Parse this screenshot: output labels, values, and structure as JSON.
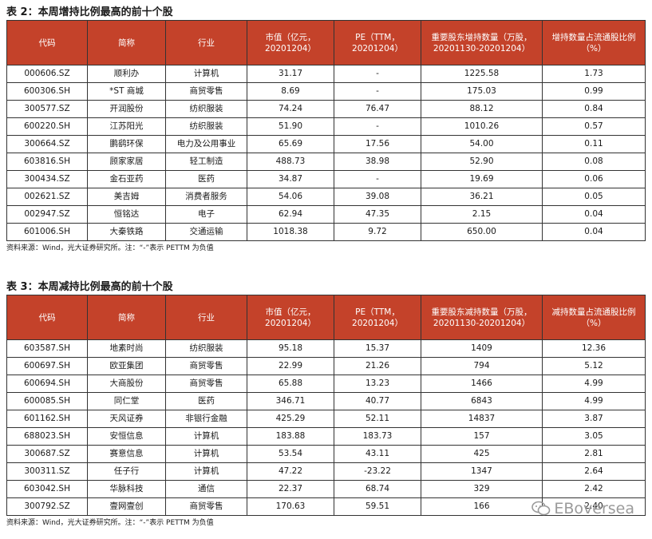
{
  "table2": {
    "title": "表 2：本周增持比例最高的前十个股",
    "headers": [
      "代码",
      "简称",
      "行业",
      "市值（亿元，20201204）",
      "PE（TTM，20201204）",
      "重要股东增持数量（万股，20201130-20201204）",
      "增持数量占流通股比例（%）"
    ],
    "rows": [
      [
        "000606.SZ",
        "顺利办",
        "计算机",
        "31.17",
        "-",
        "1225.58",
        "1.73"
      ],
      [
        "600306.SH",
        "*ST 商城",
        "商贸零售",
        "8.69",
        "-",
        "175.03",
        "0.99"
      ],
      [
        "300577.SZ",
        "开润股份",
        "纺织服装",
        "74.24",
        "76.47",
        "88.12",
        "0.84"
      ],
      [
        "600220.SH",
        "江苏阳光",
        "纺织服装",
        "51.90",
        "-",
        "1010.26",
        "0.57"
      ],
      [
        "300664.SZ",
        "鹏鹞环保",
        "电力及公用事业",
        "65.69",
        "17.56",
        "54.00",
        "0.11"
      ],
      [
        "603816.SH",
        "顾家家居",
        "轻工制造",
        "488.73",
        "38.98",
        "52.90",
        "0.08"
      ],
      [
        "300434.SZ",
        "金石亚药",
        "医药",
        "34.87",
        "-",
        "19.69",
        "0.06"
      ],
      [
        "002621.SZ",
        "美吉姆",
        "消费者服务",
        "54.06",
        "39.08",
        "36.21",
        "0.05"
      ],
      [
        "002947.SZ",
        "恒铭达",
        "电子",
        "62.94",
        "47.35",
        "2.15",
        "0.04"
      ],
      [
        "601006.SH",
        "大秦铁路",
        "交通运输",
        "1018.38",
        "9.72",
        "650.00",
        "0.04"
      ]
    ],
    "note": "资料来源：Wind，光大证券研究所。注：“-”表示 PETTM 为负值"
  },
  "table3": {
    "title": "表 3：本周减持比例最高的前十个股",
    "headers": [
      "代码",
      "简称",
      "行业",
      "市值（亿元，20201204）",
      "PE（TTM，20201204）",
      "重要股东减持数量（万股，20201130-20201204）",
      "减持数量占流通股比例（%）"
    ],
    "rows": [
      [
        "603587.SH",
        "地素时尚",
        "纺织服装",
        "95.18",
        "15.37",
        "1409",
        "12.36"
      ],
      [
        "600697.SH",
        "欧亚集团",
        "商贸零售",
        "22.99",
        "21.26",
        "794",
        "5.12"
      ],
      [
        "600694.SH",
        "大商股份",
        "商贸零售",
        "65.88",
        "13.23",
        "1466",
        "4.99"
      ],
      [
        "600085.SH",
        "同仁堂",
        "医药",
        "346.71",
        "40.77",
        "6843",
        "4.99"
      ],
      [
        "601162.SH",
        "天风证券",
        "非银行金融",
        "425.29",
        "52.11",
        "14837",
        "3.87"
      ],
      [
        "688023.SH",
        "安恒信息",
        "计算机",
        "183.88",
        "183.73",
        "157",
        "3.05"
      ],
      [
        "300687.SZ",
        "赛意信息",
        "计算机",
        "53.54",
        "43.11",
        "425",
        "2.81"
      ],
      [
        "300311.SZ",
        "任子行",
        "计算机",
        "47.22",
        "-23.22",
        "1347",
        "2.64"
      ],
      [
        "603042.SH",
        "华脉科技",
        "通信",
        "22.37",
        "68.74",
        "329",
        "2.42"
      ],
      [
        "300792.SZ",
        "壹网壹创",
        "商贸零售",
        "170.63",
        "59.51",
        "166",
        "2.40"
      ]
    ],
    "note": "资料来源：Wind，光大证券研究所。注：“-”表示 PETTM 为负值"
  },
  "watermark": {
    "text": "EBoversea",
    "icon": "chat-bubble-icon"
  },
  "colors": {
    "header_bg": "#c4422a",
    "header_text": "#ffffff",
    "border": "#333333"
  }
}
